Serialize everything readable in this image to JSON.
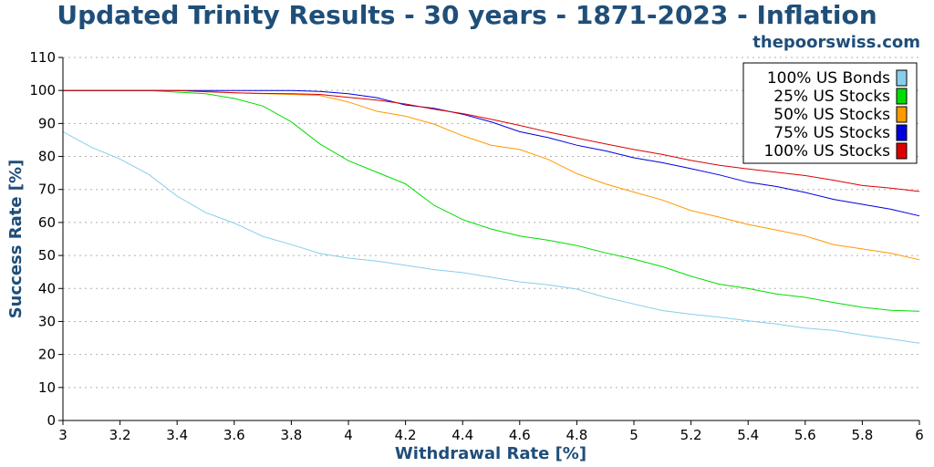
{
  "header": {
    "title": "Updated Trinity Results - 30 years - 1871-2023 - Inflation",
    "site": "thepoorswiss.com"
  },
  "chart_data": {
    "type": "line",
    "title": "Updated Trinity Results - 30 years - 1871-2023 - Inflation",
    "xlabel": "Withdrawal Rate [%]",
    "ylabel": "Success Rate [%]",
    "xlim": [
      3,
      6
    ],
    "ylim": [
      0,
      110
    ],
    "xticks": [
      3,
      3.2,
      3.4,
      3.6,
      3.8,
      4,
      4.2,
      4.4,
      4.6,
      4.8,
      5,
      5.2,
      5.4,
      5.6,
      5.8,
      6
    ],
    "xtick_labels": [
      "3",
      "3.2",
      "3.4",
      "3.6",
      "3.8",
      "4",
      "4.2",
      "4.4",
      "4.6",
      "4.8",
      "5",
      "5.2",
      "5.4",
      "5.6",
      "5.8",
      "6"
    ],
    "yticks": [
      0,
      10,
      20,
      30,
      40,
      50,
      60,
      70,
      80,
      90,
      100,
      110
    ],
    "ytick_labels": [
      "0",
      "10",
      "20",
      "30",
      "40",
      "50",
      "60",
      "70",
      "80",
      "90",
      "100",
      "110"
    ],
    "grid": true,
    "legend_position": "top-right",
    "x": [
      3.0,
      3.1,
      3.2,
      3.3,
      3.4,
      3.5,
      3.6,
      3.7,
      3.8,
      3.9,
      4.0,
      4.1,
      4.2,
      4.3,
      4.4,
      4.5,
      4.6,
      4.7,
      4.8,
      4.9,
      5.0,
      5.1,
      5.2,
      5.3,
      5.4,
      5.5,
      5.6,
      5.7,
      5.8,
      5.9,
      6.0
    ],
    "series": [
      {
        "name": "100% US Bonds",
        "color": "#87ceeb",
        "values": [
          87.5,
          82.8,
          79.2,
          74.6,
          68.0,
          63.0,
          59.8,
          55.8,
          53.3,
          50.6,
          49.2,
          48.3,
          47.0,
          45.7,
          44.8,
          43.4,
          42.0,
          41.1,
          39.8,
          37.3,
          35.3,
          33.3,
          32.2,
          31.3,
          30.2,
          29.2,
          28.0,
          27.3,
          25.9,
          24.7,
          23.4
        ]
      },
      {
        "name": "25% US Stocks",
        "color": "#00dd00",
        "values": [
          100,
          100,
          100,
          100,
          99.5,
          99.0,
          97.6,
          95.3,
          90.5,
          83.8,
          78.7,
          75.2,
          71.7,
          65.2,
          60.9,
          58.0,
          55.9,
          54.6,
          53.0,
          50.8,
          48.9,
          46.6,
          43.7,
          41.3,
          40.0,
          38.3,
          37.3,
          35.7,
          34.3,
          33.4,
          33.1
        ]
      },
      {
        "name": "50% US Stocks",
        "color": "#ff9900",
        "values": [
          100,
          100,
          100,
          100,
          100,
          99.8,
          99.3,
          99.0,
          98.8,
          98.5,
          96.5,
          93.7,
          92.2,
          89.8,
          86.3,
          83.4,
          82.1,
          79.1,
          74.8,
          71.7,
          69.2,
          66.8,
          63.6,
          61.6,
          59.4,
          57.7,
          55.9,
          53.3,
          52.0,
          50.7,
          48.7
        ]
      },
      {
        "name": "75% US Stocks",
        "color": "#0000dd",
        "values": [
          100,
          100,
          100,
          100,
          100,
          100,
          100,
          100,
          100,
          99.7,
          99.0,
          97.8,
          95.6,
          94.6,
          92.8,
          90.5,
          87.5,
          85.7,
          83.4,
          81.7,
          79.6,
          78.1,
          76.3,
          74.4,
          72.2,
          70.9,
          69.1,
          67.0,
          65.5,
          64.0,
          62.0
        ]
      },
      {
        "name": "100% US Stocks",
        "color": "#dd0000",
        "values": [
          100,
          100,
          100,
          100,
          100,
          99.6,
          99.3,
          99.1,
          99.0,
          98.8,
          97.9,
          97.1,
          95.9,
          94.3,
          93.0,
          91.3,
          89.4,
          87.4,
          85.6,
          83.8,
          82.1,
          80.6,
          78.8,
          77.3,
          76.2,
          75.2,
          74.2,
          72.8,
          71.2,
          70.4,
          69.4
        ]
      }
    ]
  }
}
